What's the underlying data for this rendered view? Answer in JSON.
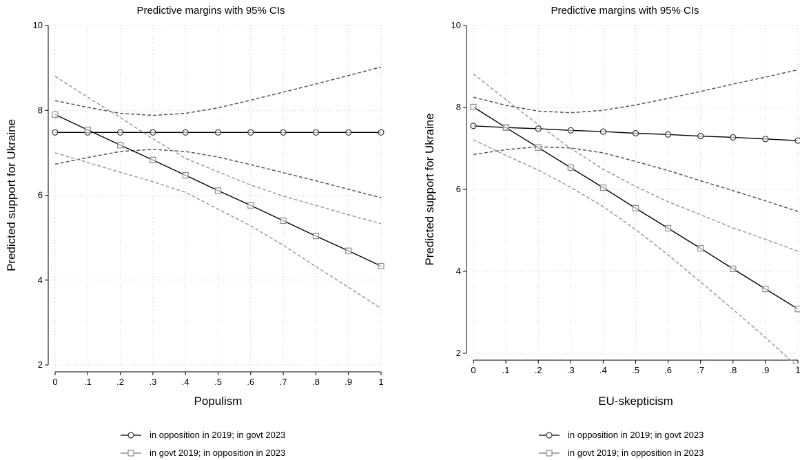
{
  "chart_data": [
    {
      "type": "line",
      "title": "Predictive margins with 95% CIs",
      "xlabel": "Populism",
      "ylabel": "Predicted support for Ukraine",
      "xlim": [
        0,
        1
      ],
      "ylim": [
        2,
        10
      ],
      "x": [
        0,
        0.1,
        0.2,
        0.3,
        0.4,
        0.5,
        0.6,
        0.7,
        0.8,
        0.9,
        1.0
      ],
      "xtick_values": [
        0,
        0.1,
        0.2,
        0.3,
        0.4,
        0.5,
        0.6,
        0.7,
        0.8,
        0.9,
        1.0
      ],
      "xtick_labels": [
        "0",
        ".1",
        ".2",
        ".3",
        ".4",
        ".5",
        ".6",
        ".7",
        ".8",
        ".9",
        "1"
      ],
      "ytick_values": [
        2,
        4,
        6,
        8,
        10
      ],
      "ytick_labels": [
        "2",
        "4",
        "6",
        "8",
        "10"
      ],
      "grid": true,
      "legend": "bottom",
      "series": [
        {
          "name": "in opposition in 2019; in govt 2023",
          "marker": "circle",
          "color": "#000000",
          "ci_color": "#555555",
          "values": [
            7.48,
            7.48,
            7.48,
            7.48,
            7.48,
            7.48,
            7.48,
            7.48,
            7.48,
            7.48,
            7.48
          ],
          "ci_upper": [
            8.23,
            8.07,
            7.93,
            7.88,
            7.93,
            8.06,
            8.24,
            8.43,
            8.62,
            8.82,
            9.02
          ],
          "ci_lower": [
            6.73,
            6.89,
            7.03,
            7.08,
            7.03,
            6.9,
            6.72,
            6.53,
            6.34,
            6.14,
            5.94
          ]
        },
        {
          "name": "in govt 2019; in opposition in 2023",
          "marker": "square",
          "color": "#000000",
          "ci_color": "#999999",
          "values": [
            7.9,
            7.54,
            7.18,
            6.83,
            6.47,
            6.11,
            5.76,
            5.4,
            5.04,
            4.69,
            4.33
          ],
          "ci_upper": [
            8.8,
            8.31,
            7.83,
            7.33,
            6.87,
            6.55,
            6.24,
            5.98,
            5.76,
            5.54,
            5.33
          ],
          "ci_lower": [
            7.0,
            6.77,
            6.54,
            6.32,
            6.07,
            5.67,
            5.28,
            4.82,
            4.32,
            3.83,
            3.33
          ]
        }
      ]
    },
    {
      "type": "line",
      "title": "Predictive margins with 95% CIs",
      "xlabel": "EU-skepticism",
      "ylabel": "Predicted support for Ukraine",
      "xlim": [
        0,
        1
      ],
      "ylim": [
        2,
        10
      ],
      "x": [
        0,
        0.1,
        0.2,
        0.3,
        0.4,
        0.5,
        0.6,
        0.7,
        0.8,
        0.9,
        1.0
      ],
      "xtick_values": [
        0,
        0.1,
        0.2,
        0.3,
        0.4,
        0.5,
        0.6,
        0.7,
        0.8,
        0.9,
        1.0
      ],
      "xtick_labels": [
        "0",
        ".1",
        ".2",
        ".3",
        ".4",
        ".5",
        ".6",
        ".7",
        ".8",
        ".9",
        "1"
      ],
      "ytick_values": [
        2,
        4,
        6,
        8,
        10
      ],
      "ytick_labels": [
        "2",
        "4",
        "6",
        "8",
        "10"
      ],
      "grid": true,
      "legend": "bottom",
      "series": [
        {
          "name": "in opposition in 2019; in govt 2023",
          "marker": "circle",
          "color": "#000000",
          "ci_color": "#555555",
          "values": [
            7.55,
            7.51,
            7.48,
            7.44,
            7.41,
            7.37,
            7.34,
            7.3,
            7.27,
            7.23,
            7.19
          ],
          "ci_upper": [
            8.25,
            8.05,
            7.91,
            7.87,
            7.93,
            8.06,
            8.22,
            8.39,
            8.57,
            8.74,
            8.92
          ],
          "ci_lower": [
            6.85,
            6.97,
            7.04,
            7.01,
            6.89,
            6.68,
            6.46,
            6.21,
            5.97,
            5.72,
            5.46
          ]
        },
        {
          "name": "in govt 2019; in opposition in 2023",
          "marker": "square",
          "color": "#000000",
          "ci_color": "#999999",
          "values": [
            8.01,
            7.51,
            7.02,
            6.53,
            6.04,
            5.54,
            5.05,
            4.56,
            4.06,
            3.57,
            3.08
          ],
          "ci_upper": [
            8.82,
            8.19,
            7.58,
            7.0,
            6.49,
            6.07,
            5.7,
            5.38,
            5.06,
            4.78,
            4.49
          ],
          "ci_lower": [
            7.21,
            6.83,
            6.47,
            6.05,
            5.58,
            5.02,
            4.4,
            3.74,
            3.07,
            2.38,
            1.67
          ]
        }
      ]
    }
  ]
}
